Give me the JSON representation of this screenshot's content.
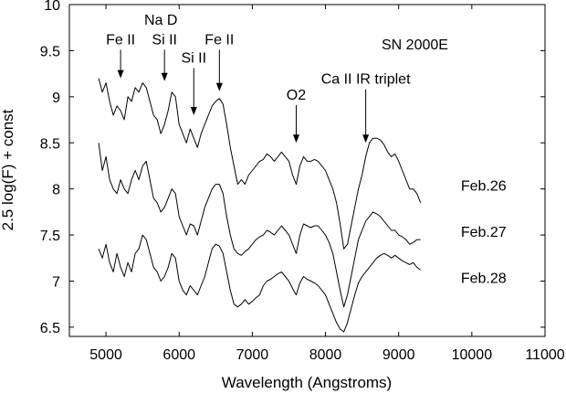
{
  "chart_data": {
    "type": "line",
    "title": "",
    "xlabel": "Wavelength (Angstroms)",
    "ylabel": "2.5 log(F) + const",
    "xlim": [
      4500,
      11000
    ],
    "ylim": [
      6.4,
      10
    ],
    "xticks": [
      5000,
      6000,
      7000,
      8000,
      9000,
      10000,
      11000
    ],
    "xtick_labels": [
      "5000",
      "6000",
      "7000",
      "8000",
      "9000",
      "10000",
      "11000"
    ],
    "yticks": [
      6.5,
      7,
      7.5,
      8,
      8.5,
      9,
      9.5,
      10
    ],
    "ytick_labels": [
      "6.5",
      "7",
      "7.5",
      "8",
      "8.5",
      "9",
      "9.5",
      "10"
    ],
    "grid": false,
    "legend": "none",
    "object_label": "SN 2000E",
    "series": [
      {
        "name": "Feb.26",
        "x": [
          4900,
          4950,
          5000,
          5050,
          5100,
          5150,
          5200,
          5250,
          5300,
          5350,
          5400,
          5450,
          5500,
          5550,
          5600,
          5650,
          5700,
          5750,
          5800,
          5850,
          5900,
          5950,
          6000,
          6050,
          6100,
          6150,
          6200,
          6250,
          6300,
          6350,
          6400,
          6450,
          6500,
          6550,
          6600,
          6650,
          6700,
          6750,
          6800,
          6850,
          6900,
          6950,
          7000,
          7050,
          7100,
          7150,
          7200,
          7250,
          7300,
          7350,
          7400,
          7450,
          7500,
          7550,
          7600,
          7650,
          7700,
          7750,
          7800,
          7850,
          7900,
          7950,
          8000,
          8050,
          8100,
          8150,
          8200,
          8250,
          8300,
          8350,
          8400,
          8450,
          8500,
          8550,
          8600,
          8650,
          8700,
          8750,
          8800,
          8850,
          8900,
          8950,
          9000,
          9050,
          9100,
          9150,
          9200,
          9250,
          9300
        ],
        "y": [
          9.2,
          9.05,
          9.15,
          8.95,
          8.8,
          8.9,
          8.85,
          8.75,
          9.0,
          8.95,
          9.1,
          9.05,
          9.15,
          9.1,
          8.95,
          8.8,
          8.75,
          8.6,
          8.7,
          8.85,
          9.05,
          9.0,
          8.7,
          8.6,
          8.5,
          8.65,
          8.55,
          8.45,
          8.6,
          8.7,
          8.8,
          8.9,
          8.95,
          8.98,
          8.92,
          8.7,
          8.45,
          8.25,
          8.05,
          8.1,
          8.05,
          8.15,
          8.2,
          8.25,
          8.3,
          8.32,
          8.38,
          8.35,
          8.3,
          8.35,
          8.4,
          8.35,
          8.3,
          8.15,
          8.05,
          8.25,
          8.35,
          8.3,
          8.3,
          8.32,
          8.3,
          8.25,
          8.2,
          8.1,
          8.0,
          7.85,
          7.62,
          7.35,
          7.4,
          7.6,
          7.8,
          8.0,
          8.15,
          8.35,
          8.5,
          8.55,
          8.55,
          8.53,
          8.48,
          8.4,
          8.35,
          8.38,
          8.3,
          8.2,
          8.1,
          8.0,
          8.0,
          7.95,
          7.85
        ]
      },
      {
        "name": "Feb.27",
        "x": [
          4900,
          4950,
          5000,
          5050,
          5100,
          5150,
          5200,
          5250,
          5300,
          5350,
          5400,
          5450,
          5500,
          5550,
          5600,
          5650,
          5700,
          5750,
          5800,
          5850,
          5900,
          5950,
          6000,
          6050,
          6100,
          6150,
          6200,
          6250,
          6300,
          6350,
          6400,
          6450,
          6500,
          6550,
          6600,
          6650,
          6700,
          6750,
          6800,
          6850,
          6900,
          6950,
          7000,
          7050,
          7100,
          7150,
          7200,
          7250,
          7300,
          7350,
          7400,
          7450,
          7500,
          7550,
          7600,
          7650,
          7700,
          7750,
          7800,
          7850,
          7900,
          7950,
          8000,
          8050,
          8100,
          8150,
          8200,
          8250,
          8300,
          8350,
          8400,
          8450,
          8500,
          8550,
          8600,
          8650,
          8700,
          8750,
          8800,
          8850,
          8900,
          8950,
          9000,
          9050,
          9100,
          9150,
          9200,
          9250,
          9300
        ],
        "y": [
          8.5,
          8.2,
          8.35,
          8.1,
          8.0,
          7.95,
          8.1,
          8.0,
          7.95,
          8.1,
          8.2,
          8.1,
          8.25,
          8.3,
          8.1,
          7.9,
          7.85,
          7.75,
          7.8,
          7.9,
          8.0,
          7.95,
          7.7,
          7.6,
          7.5,
          7.62,
          7.6,
          7.5,
          7.65,
          7.8,
          7.9,
          8.0,
          8.05,
          8.05,
          7.95,
          7.7,
          7.5,
          7.35,
          7.3,
          7.28,
          7.32,
          7.35,
          7.4,
          7.45,
          7.48,
          7.5,
          7.55,
          7.53,
          7.5,
          7.55,
          7.6,
          7.55,
          7.5,
          7.4,
          7.3,
          7.5,
          7.62,
          7.6,
          7.58,
          7.6,
          7.6,
          7.55,
          7.5,
          7.42,
          7.3,
          7.1,
          6.9,
          6.72,
          6.85,
          7.05,
          7.25,
          7.45,
          7.55,
          7.65,
          7.7,
          7.75,
          7.73,
          7.7,
          7.65,
          7.6,
          7.55,
          7.55,
          7.5,
          7.48,
          7.45,
          7.4,
          7.42,
          7.45,
          7.45
        ]
      },
      {
        "name": "Feb.28",
        "x": [
          4900,
          4950,
          5000,
          5050,
          5100,
          5150,
          5200,
          5250,
          5300,
          5350,
          5400,
          5450,
          5500,
          5550,
          5600,
          5650,
          5700,
          5750,
          5800,
          5850,
          5900,
          5950,
          6000,
          6050,
          6100,
          6150,
          6200,
          6250,
          6300,
          6350,
          6400,
          6450,
          6500,
          6550,
          6600,
          6650,
          6700,
          6750,
          6800,
          6850,
          6900,
          6950,
          7000,
          7050,
          7100,
          7150,
          7200,
          7250,
          7300,
          7350,
          7400,
          7450,
          7500,
          7550,
          7600,
          7650,
          7700,
          7750,
          7800,
          7850,
          7900,
          7950,
          8000,
          8050,
          8100,
          8150,
          8200,
          8250,
          8300,
          8350,
          8400,
          8450,
          8500,
          8550,
          8600,
          8650,
          8700,
          8750,
          8800,
          8850,
          8900,
          8950,
          9000,
          9050,
          9100,
          9150,
          9200,
          9250,
          9300
        ],
        "y": [
          7.35,
          7.25,
          7.4,
          7.2,
          7.1,
          7.3,
          7.15,
          7.05,
          7.2,
          7.1,
          7.3,
          7.35,
          7.5,
          7.45,
          7.3,
          7.15,
          7.1,
          7.0,
          7.05,
          7.15,
          7.3,
          7.25,
          7.0,
          6.9,
          6.85,
          6.95,
          6.9,
          6.85,
          6.95,
          7.05,
          7.2,
          7.35,
          7.4,
          7.38,
          7.3,
          7.1,
          6.9,
          6.75,
          6.72,
          6.75,
          6.8,
          6.75,
          6.78,
          6.82,
          6.85,
          6.95,
          7.0,
          7.02,
          7.05,
          7.08,
          7.1,
          7.05,
          7.0,
          6.92,
          6.85,
          6.98,
          7.05,
          7.02,
          7.0,
          6.98,
          6.95,
          6.9,
          6.85,
          6.75,
          6.65,
          6.55,
          6.48,
          6.45,
          6.55,
          6.7,
          6.85,
          6.98,
          7.05,
          7.1,
          7.15,
          7.2,
          7.25,
          7.28,
          7.3,
          7.28,
          7.25,
          7.28,
          7.25,
          7.22,
          7.2,
          7.18,
          7.2,
          7.15,
          7.12
        ]
      }
    ],
    "series_labels": [
      {
        "text": "Feb.26",
        "x": 9850,
        "y": 7.98
      },
      {
        "text": "Feb.27",
        "x": 9850,
        "y": 7.48
      },
      {
        "text": "Feb.28",
        "x": 9850,
        "y": 6.98
      }
    ],
    "line_labels": [
      {
        "text": "Fe II",
        "x": 5200,
        "y": 9.57,
        "arrow_to": 9.2
      },
      {
        "text": "Na D",
        "x": 5750,
        "y": 9.78,
        "arrow_to": null
      },
      {
        "text": "Si II",
        "x": 5800,
        "y": 9.57,
        "arrow_to": 9.17
      },
      {
        "text": "Si II",
        "x": 6200,
        "y": 9.37,
        "arrow_to": 8.8
      },
      {
        "text": "Fe II",
        "x": 6550,
        "y": 9.57,
        "arrow_to": 9.06
      },
      {
        "text": "O2",
        "x": 7600,
        "y": 8.97,
        "arrow_to": 8.5
      },
      {
        "text": "Ca II IR triplet",
        "x": 8550,
        "y": 9.14,
        "arrow_to": 8.5
      }
    ]
  }
}
